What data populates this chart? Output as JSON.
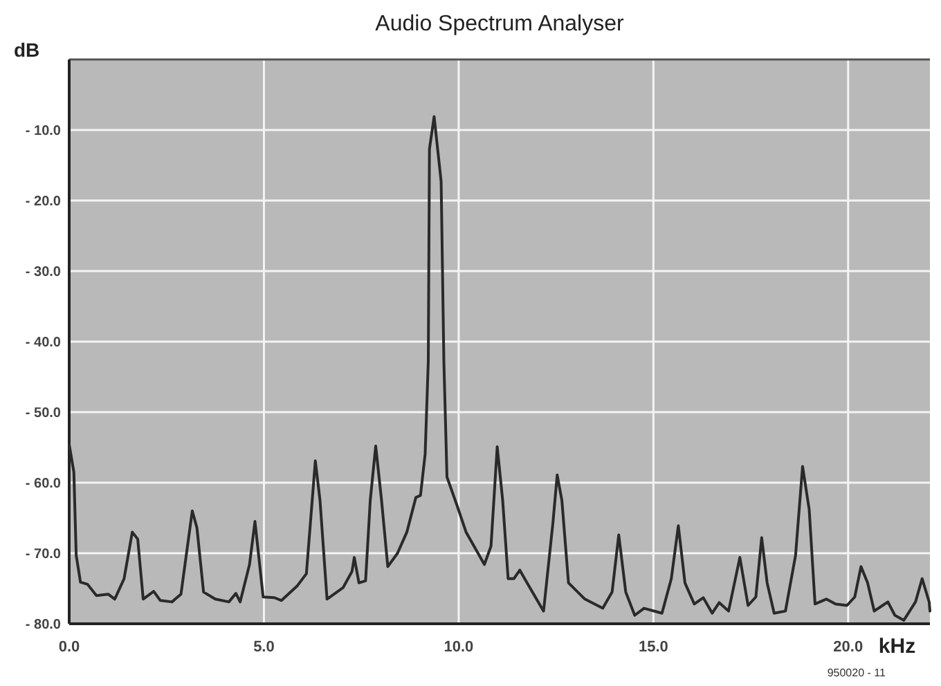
{
  "chart_data": {
    "type": "line",
    "title": "Audio Spectrum Analyser",
    "xlabel": "kHz",
    "ylabel": "dB",
    "annotations": [
      "950020 - 11"
    ],
    "xlim": [
      0,
      22.1
    ],
    "ylim": [
      -80,
      0
    ],
    "xticks": [
      {
        "value": 0,
        "label": "0.0"
      },
      {
        "value": 5,
        "label": "5.0"
      },
      {
        "value": 10,
        "label": "10.0"
      },
      {
        "value": 15,
        "label": "15.0"
      },
      {
        "value": 20,
        "label": "20.0"
      }
    ],
    "yticks": [
      {
        "value": -80,
        "label": "- 80.0"
      },
      {
        "value": -70,
        "label": "- 70.0"
      },
      {
        "value": -60,
        "label": "- 60.0"
      },
      {
        "value": -50,
        "label": "- 50.0"
      },
      {
        "value": -40,
        "label": "- 40.0"
      },
      {
        "value": -30,
        "label": "- 30.0"
      },
      {
        "value": -20,
        "label": "- 20.0"
      },
      {
        "value": -10,
        "label": "- 10.0"
      }
    ],
    "grid": true,
    "marker": "none",
    "line_style": "solid",
    "series": [
      {
        "color": "#2a2a2a",
        "x": [
          0,
          0.12,
          0.18,
          0.29,
          0.47,
          0.7,
          1.0,
          1.17,
          1.41,
          1.62,
          1.76,
          1.9,
          2.17,
          2.34,
          2.64,
          2.87,
          3.16,
          3.28,
          3.45,
          3.75,
          4.1,
          4.28,
          4.39,
          4.63,
          4.77,
          4.98,
          5.27,
          5.45,
          5.86,
          6.09,
          6.32,
          6.44,
          6.62,
          7.03,
          7.26,
          7.32,
          7.44,
          7.61,
          7.73,
          7.87,
          8.02,
          8.18,
          8.43,
          8.67,
          8.9,
          9.02,
          9.14,
          9.22,
          9.25,
          9.37,
          9.55,
          9.62,
          9.7,
          9.95,
          10.19,
          10.66,
          10.83,
          10.99,
          11.13,
          11.27,
          11.42,
          11.57,
          11.83,
          12.18,
          12.42,
          12.53,
          12.65,
          12.82,
          13.24,
          13.7,
          13.94,
          14.11,
          14.29,
          14.52,
          14.76,
          15.22,
          15.46,
          15.64,
          15.81,
          16.05,
          16.28,
          16.51,
          16.69,
          16.93,
          17.22,
          17.43,
          17.63,
          17.78,
          17.92,
          18.1,
          18.39,
          18.65,
          18.83,
          19.0,
          19.15,
          19.44,
          19.68,
          19.97,
          20.17,
          20.33,
          20.5,
          20.67,
          21.02,
          21.2,
          21.43,
          21.73,
          21.9,
          22.08,
          22.1
        ],
        "values": [
          -54.6,
          -58.5,
          -70.3,
          -74.1,
          -74.4,
          -76,
          -75.8,
          -76.5,
          -73.6,
          -67,
          -68,
          -76.5,
          -75.4,
          -76.7,
          -76.9,
          -75.8,
          -64,
          -66.4,
          -75.5,
          -76.5,
          -76.9,
          -75.7,
          -76.9,
          -71.6,
          -65.5,
          -76.2,
          -76.3,
          -76.7,
          -74.6,
          -72.9,
          -56.9,
          -62.5,
          -76.5,
          -74.9,
          -72.6,
          -70.6,
          -74.2,
          -73.9,
          -62.5,
          -54.8,
          -62.5,
          -71.9,
          -70,
          -67,
          -62.1,
          -61.8,
          -55.9,
          -42.8,
          -12.7,
          -8.1,
          -17.3,
          -42.8,
          -59.2,
          -63.1,
          -67,
          -71.6,
          -69,
          -54.9,
          -62.5,
          -73.6,
          -73.6,
          -72.4,
          -74.9,
          -78.2,
          -65.7,
          -58.9,
          -62.5,
          -74.2,
          -76.5,
          -77.8,
          -75.5,
          -67.4,
          -75.5,
          -78.8,
          -77.8,
          -78.5,
          -73.6,
          -66.1,
          -74.2,
          -77.2,
          -76.3,
          -78.5,
          -77,
          -78.2,
          -70.6,
          -77.4,
          -76.2,
          -67.8,
          -74.2,
          -78.5,
          -78.2,
          -70.3,
          -57.7,
          -63.8,
          -77.2,
          -76.5,
          -77.2,
          -77.4,
          -76.2,
          -71.9,
          -74.2,
          -78.2,
          -76.9,
          -78.8,
          -79.5,
          -76.9,
          -73.6,
          -76.9,
          -78.2
        ]
      }
    ]
  }
}
